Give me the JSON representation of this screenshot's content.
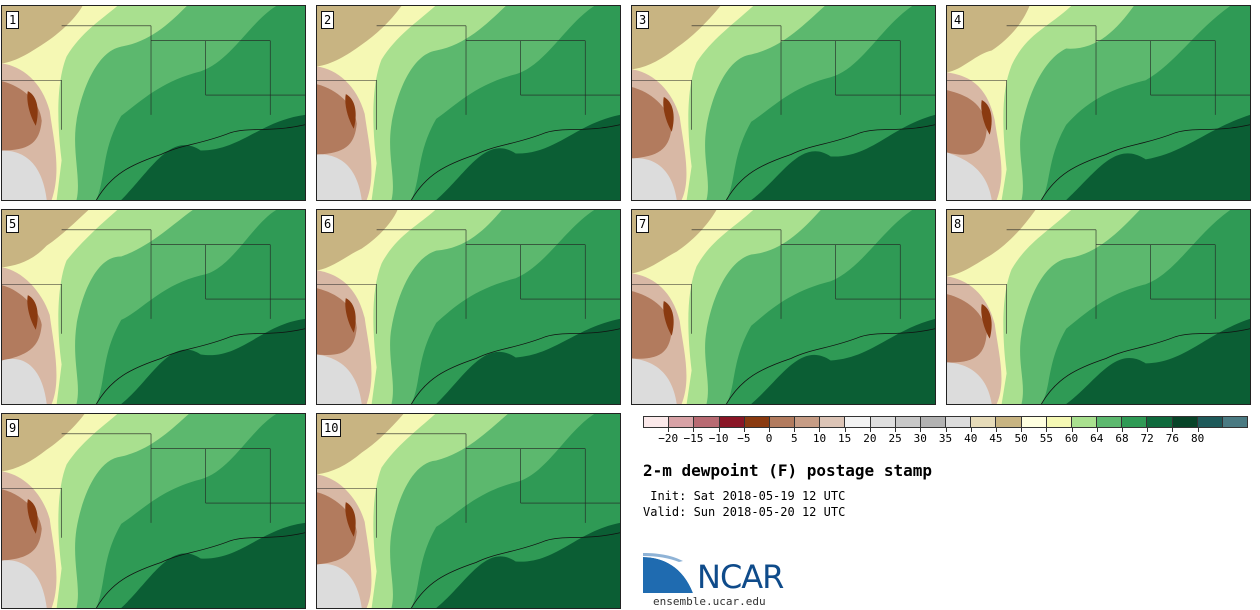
{
  "stamps": [
    {
      "label": "1"
    },
    {
      "label": "2"
    },
    {
      "label": "3"
    },
    {
      "label": "4"
    },
    {
      "label": "5"
    },
    {
      "label": "6"
    },
    {
      "label": "7"
    },
    {
      "label": "8"
    },
    {
      "label": "9"
    },
    {
      "label": "10"
    }
  ],
  "colorbar": {
    "colors": [
      "#fbe9ea",
      "#d8a2a6",
      "#b86a72",
      "#8a1626",
      "#8a3a10",
      "#b27b5e",
      "#c69c85",
      "#dcc4b6",
      "#f2f2f2",
      "#dedede",
      "#c8c8c8",
      "#b2b2b2",
      "#dcdcdc",
      "#e6dbb9",
      "#c8b482",
      "#ffffe0",
      "#f5f8b4",
      "#a9e08f",
      "#5cb86e",
      "#2f9a55",
      "#0f6a3c",
      "#074428",
      "#1e5a5a",
      "#4a7a82"
    ],
    "ticks": [
      "−20",
      "−15",
      "−10",
      "−5",
      "0",
      "5",
      "10",
      "15",
      "20",
      "25",
      "30",
      "35",
      "40",
      "45",
      "50",
      "55",
      "60",
      "64",
      "68",
      "72",
      "76",
      "80"
    ]
  },
  "title": "2-m dewpoint (F) postage stamp",
  "init_line": " Init: Sat 2018-05-19 12 UTC",
  "valid_line": "Valid: Sun 2018-05-20 12 UTC",
  "logo": {
    "name": "NCAR",
    "url": "ensemble.ucar.edu"
  }
}
